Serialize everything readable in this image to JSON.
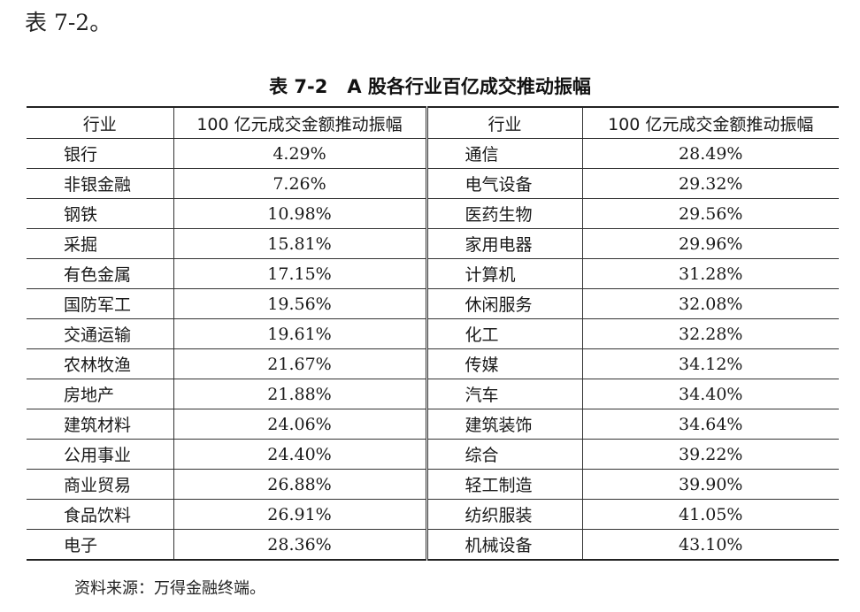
{
  "intro_text": "表 7-2。",
  "caption": {
    "number": "表 7-2",
    "title": "A 股各行业百亿成交推动振幅"
  },
  "headers": {
    "industry": "行业",
    "amplitude": "100 亿元成交金额推动振幅"
  },
  "left_rows": [
    {
      "industry": "银行",
      "amplitude": "4.29%"
    },
    {
      "industry": "非银金融",
      "amplitude": "7.26%"
    },
    {
      "industry": "钢铁",
      "amplitude": "10.98%"
    },
    {
      "industry": "采掘",
      "amplitude": "15.81%"
    },
    {
      "industry": "有色金属",
      "amplitude": "17.15%"
    },
    {
      "industry": "国防军工",
      "amplitude": "19.56%"
    },
    {
      "industry": "交通运输",
      "amplitude": "19.61%"
    },
    {
      "industry": "农林牧渔",
      "amplitude": "21.67%"
    },
    {
      "industry": "房地产",
      "amplitude": "21.88%"
    },
    {
      "industry": "建筑材料",
      "amplitude": "24.06%"
    },
    {
      "industry": "公用事业",
      "amplitude": "24.40%"
    },
    {
      "industry": "商业贸易",
      "amplitude": "26.88%"
    },
    {
      "industry": "食品饮料",
      "amplitude": "26.91%"
    },
    {
      "industry": "电子",
      "amplitude": "28.36%"
    }
  ],
  "right_rows": [
    {
      "industry": "通信",
      "amplitude": "28.49%"
    },
    {
      "industry": "电气设备",
      "amplitude": "29.32%"
    },
    {
      "industry": "医药生物",
      "amplitude": "29.56%"
    },
    {
      "industry": "家用电器",
      "amplitude": "29.96%"
    },
    {
      "industry": "计算机",
      "amplitude": "31.28%"
    },
    {
      "industry": "休闲服务",
      "amplitude": "32.08%"
    },
    {
      "industry": "化工",
      "amplitude": "32.28%"
    },
    {
      "industry": "传媒",
      "amplitude": "34.12%"
    },
    {
      "industry": "汽车",
      "amplitude": "34.40%"
    },
    {
      "industry": "建筑装饰",
      "amplitude": "34.64%"
    },
    {
      "industry": "综合",
      "amplitude": "39.22%"
    },
    {
      "industry": "轻工制造",
      "amplitude": "39.90%"
    },
    {
      "industry": "纺织服装",
      "amplitude": "41.05%"
    },
    {
      "industry": "机械设备",
      "amplitude": "43.10%"
    }
  ],
  "source_note": "资料来源：万得金融终端。"
}
